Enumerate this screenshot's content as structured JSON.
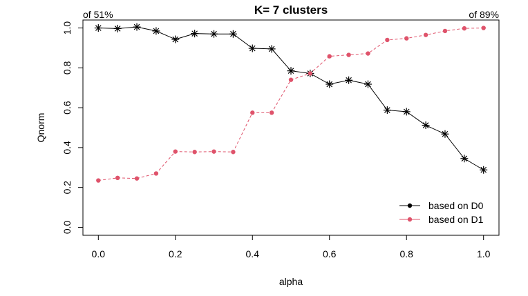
{
  "chart_data": {
    "type": "line",
    "title": "K= 7 clusters",
    "xlabel": "alpha",
    "ylabel": "Qnorm",
    "xlim": [
      -0.04,
      1.04
    ],
    "ylim": [
      -0.04,
      1.04
    ],
    "x_ticks": [
      0.0,
      0.2,
      0.4,
      0.6,
      0.8,
      1.0
    ],
    "x_tick_labels": [
      "0.0",
      "0.2",
      "0.4",
      "0.6",
      "0.8",
      "1.0"
    ],
    "y_ticks": [
      0.0,
      0.2,
      0.4,
      0.6,
      0.8,
      1.0
    ],
    "y_tick_labels": [
      "0.0",
      "0.2",
      "0.4",
      "0.6",
      "0.8",
      "1.0"
    ],
    "x": [
      0.0,
      0.05,
      0.1,
      0.15,
      0.2,
      0.25,
      0.3,
      0.35,
      0.4,
      0.45,
      0.5,
      0.55,
      0.6,
      0.65,
      0.7,
      0.75,
      0.8,
      0.85,
      0.9,
      0.95,
      1.0
    ],
    "series": [
      {
        "name": "based on D0",
        "color": "#000000",
        "marker": "asterisk",
        "line_style": "solid",
        "values": [
          1.0,
          0.997,
          1.005,
          0.985,
          0.943,
          0.972,
          0.97,
          0.97,
          0.898,
          0.895,
          0.785,
          0.772,
          0.718,
          0.738,
          0.718,
          0.588,
          0.58,
          0.512,
          0.468,
          0.345,
          0.288
        ]
      },
      {
        "name": "based on D1",
        "color": "#DF536B",
        "marker": "dot",
        "line_style": "dashed",
        "values": [
          0.235,
          0.248,
          0.245,
          0.27,
          0.38,
          0.378,
          0.38,
          0.378,
          0.575,
          0.575,
          0.74,
          0.772,
          0.858,
          0.865,
          0.872,
          0.94,
          0.948,
          0.965,
          0.985,
          0.998,
          1.0
        ]
      }
    ],
    "annotations": {
      "left": "of 51%",
      "right": "of 89%"
    },
    "legend_position": "bottom-right",
    "grid": false
  }
}
